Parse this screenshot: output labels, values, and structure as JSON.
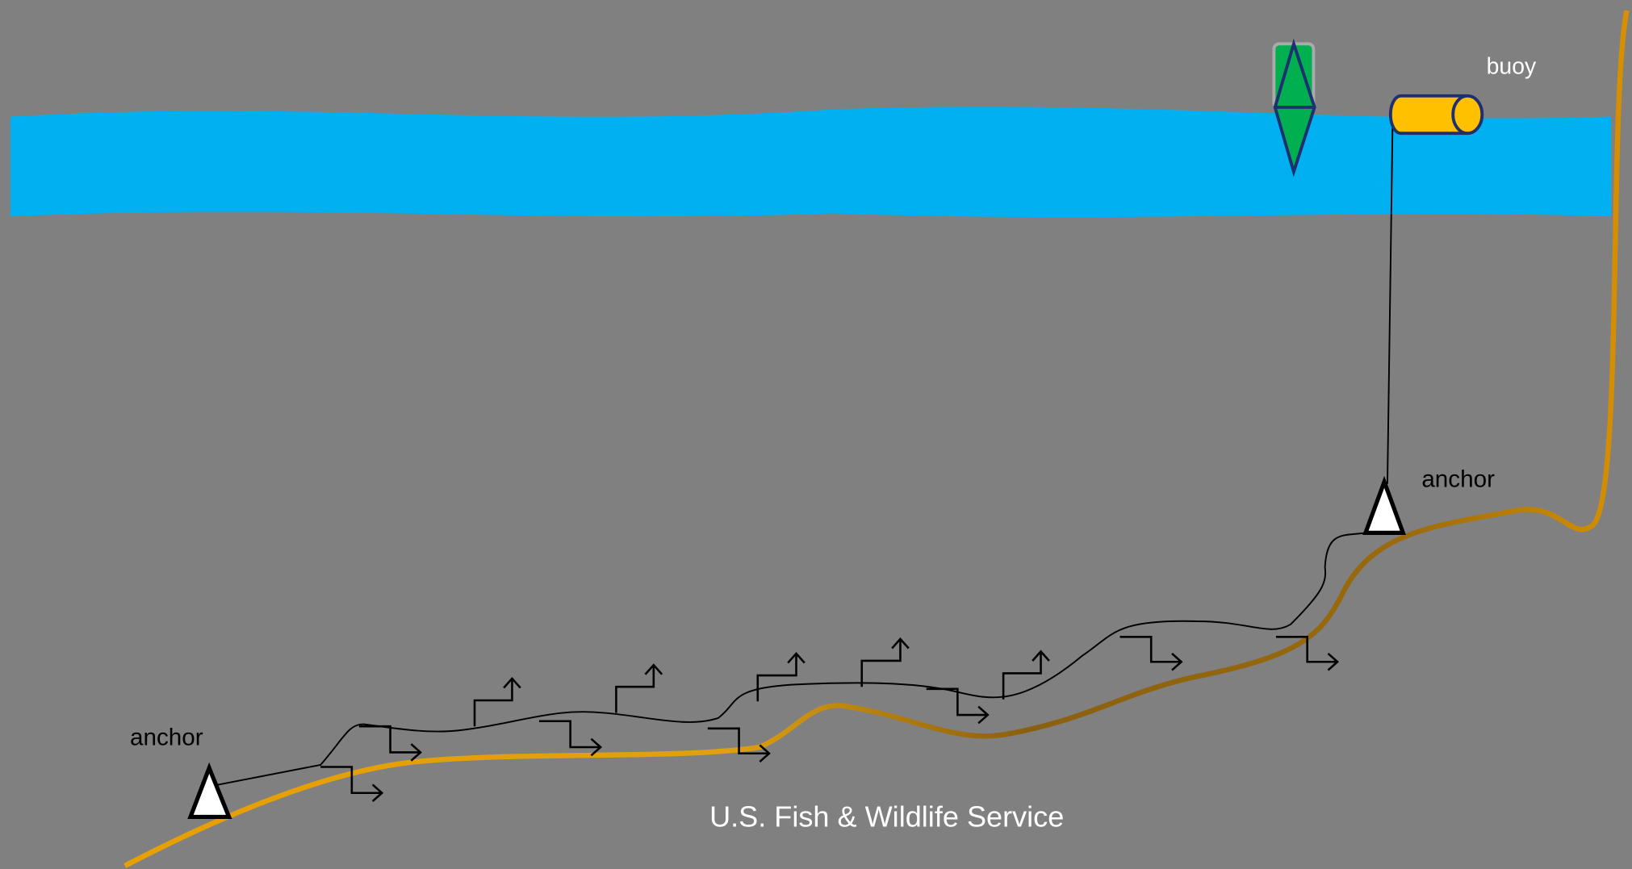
{
  "labels": {
    "buoy": "buoy",
    "anchor_left": "anchor",
    "anchor_right": "anchor"
  },
  "credit": "U.S. Fish & Wildlife Service"
}
